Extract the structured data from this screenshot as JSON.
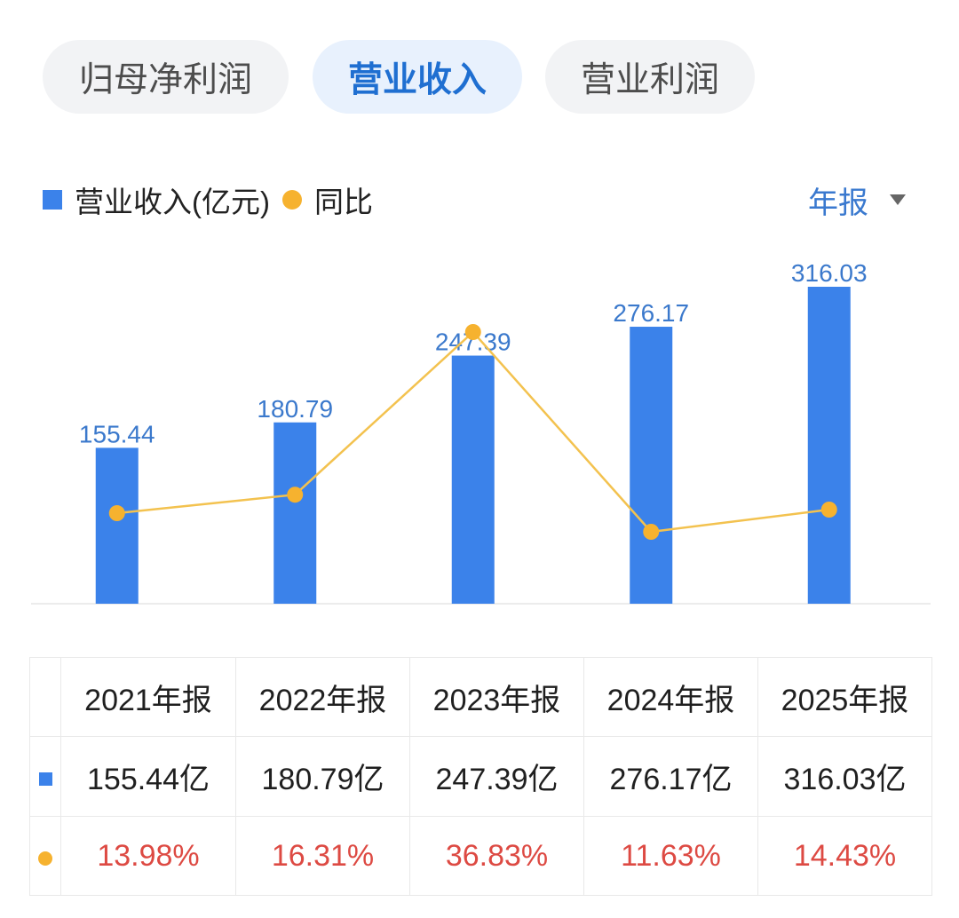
{
  "tabs": [
    {
      "label": "归母净利润",
      "active": false
    },
    {
      "label": "营业收入",
      "active": true
    },
    {
      "label": "营业利润",
      "active": false
    }
  ],
  "legend": {
    "bar_icon": "blue-square-icon",
    "line_icon": "orange-dot-icon",
    "period_label": "年报",
    "period_icon": "caret-down-icon"
  },
  "colors": {
    "bar": "#3b82ea",
    "bar_label": "#3b79cc",
    "line": "#f3c24f",
    "dot": "#f6b22f",
    "growth_text": "#dd4a43",
    "baseline": "#e6e6e6"
  },
  "chart_data": {
    "type": "bar",
    "categories": [
      "2021年报",
      "2022年报",
      "2023年报",
      "2024年报",
      "2025年报"
    ],
    "series": [
      {
        "name": "营业收入(亿元)",
        "type": "bar",
        "values": [
          155.44,
          180.79,
          247.39,
          276.17,
          316.03
        ]
      },
      {
        "name": "同比",
        "type": "line",
        "values": [
          13.98,
          16.31,
          36.83,
          11.63,
          14.43
        ]
      }
    ],
    "data_labels": true,
    "grid": false,
    "legend": "top-left"
  },
  "table": {
    "revenue_row": [
      "155.44亿",
      "180.79亿",
      "247.39亿",
      "276.17亿",
      "316.03亿"
    ],
    "growth_row": [
      "13.98%",
      "16.31%",
      "36.83%",
      "11.63%",
      "14.43%"
    ]
  }
}
